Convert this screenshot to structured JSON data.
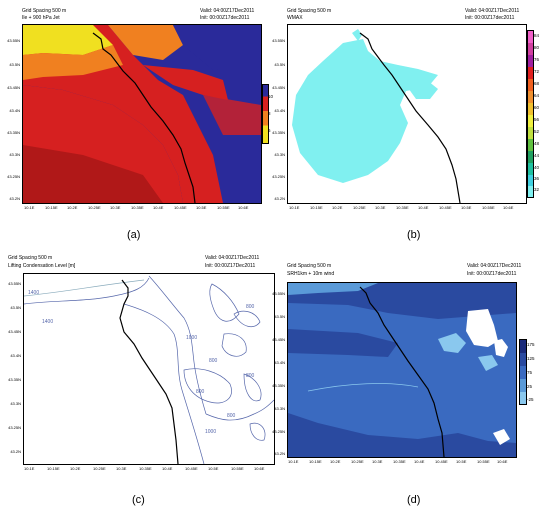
{
  "panels": {
    "a": {
      "label": "(a)",
      "header_left_1": "Grid Spacing 500 m",
      "header_left_2": "Ile + 900 hPa Jet",
      "header_right_1": "Valid: 04:00Z17Dec2011",
      "header_right_2": "Init: 00:00Z17dec2011",
      "colorbar_ticks": [
        "10",
        "8",
        "6"
      ],
      "colors": [
        "#d62020",
        "#f08020",
        "#f0e020",
        "#2a2a9a"
      ]
    },
    "b": {
      "label": "(b)",
      "header_left_1": "Grid Spacing 500 m",
      "header_left_2": "WMAX",
      "header_right_1": "Valid: 04:00Z17Dec2011",
      "header_right_2": "Init: 00:00Z17dec2011",
      "colorbar_ticks": [
        "84",
        "80",
        "76",
        "72",
        "68",
        "64",
        "60",
        "56",
        "52",
        "48",
        "44",
        "40",
        "36",
        "32"
      ],
      "colors": [
        "#f060c8",
        "#d040a0",
        "#a020a0",
        "#e02020",
        "#f06020",
        "#f09030",
        "#f0c030",
        "#f0f040",
        "#c0e040",
        "#60c040",
        "#20a060",
        "#20c0a0",
        "#40d0e0",
        "#80f0f0"
      ]
    },
    "c": {
      "label": "(c)",
      "header_left_1": "Grid Spacing 500 m",
      "header_left_2": "Lifting Condensation Level [m]",
      "header_right_1": "Valid: 04:00Z17Dec2011",
      "header_right_2": "Init: 00:00Z17Dec2011",
      "contour_labels": [
        "1400",
        "1400",
        "1000",
        "800",
        "800",
        "800",
        "800",
        "800",
        "1000"
      ]
    },
    "d": {
      "label": "(d)",
      "header_left_1": "Grid Spacing 500 m",
      "header_left_2": "SRH1km + 10m wind",
      "header_right_1": "Valid: 04:00Z17Dec2011",
      "header_right_2": "Init: 00:00Z17dec2011",
      "colorbar_ticks": [
        "175",
        "125",
        "75",
        "25",
        "-25"
      ],
      "colors": [
        "#1a2a7a",
        "#2a4aa0",
        "#3a6ac0",
        "#5a9ad8",
        "#8ac8ee"
      ]
    }
  },
  "y_ticks": [
    "43.55N",
    "43.5N",
    "43.45N",
    "43.4N",
    "43.35N",
    "43.3N",
    "43.25N",
    "43.2N"
  ],
  "x_ticks": [
    "10.1E",
    "10.15E",
    "10.2E",
    "10.25E",
    "10.3E",
    "10.35E",
    "10.4E",
    "10.45E",
    "10.5E",
    "10.55E",
    "10.6E"
  ]
}
